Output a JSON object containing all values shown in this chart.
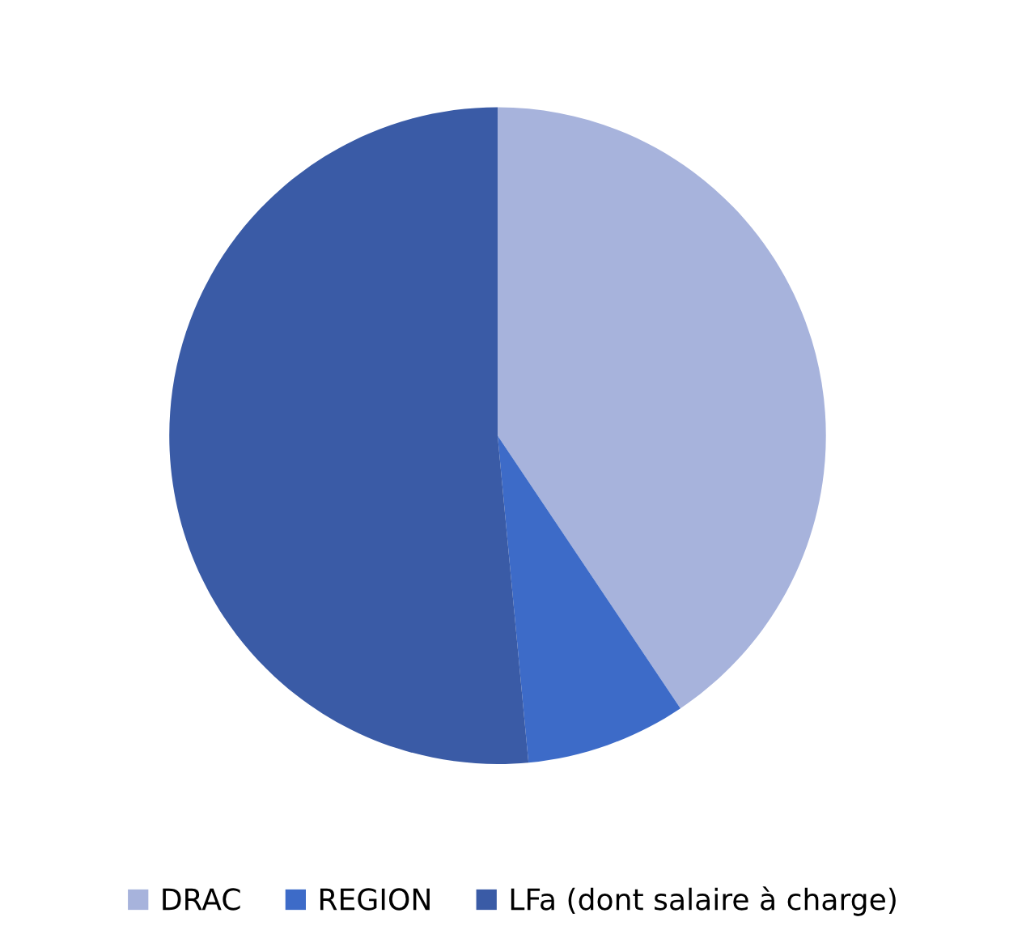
{
  "chart_data": {
    "type": "pie",
    "categories": [
      "DRAC",
      "REGION",
      "LFa (dont salaire à charge)"
    ],
    "values": [
      40.6,
      7.9,
      51.5
    ],
    "colors": [
      "#a7b3dc",
      "#3d6bc8",
      "#3a5ba6"
    ],
    "legend": "bottom"
  }
}
